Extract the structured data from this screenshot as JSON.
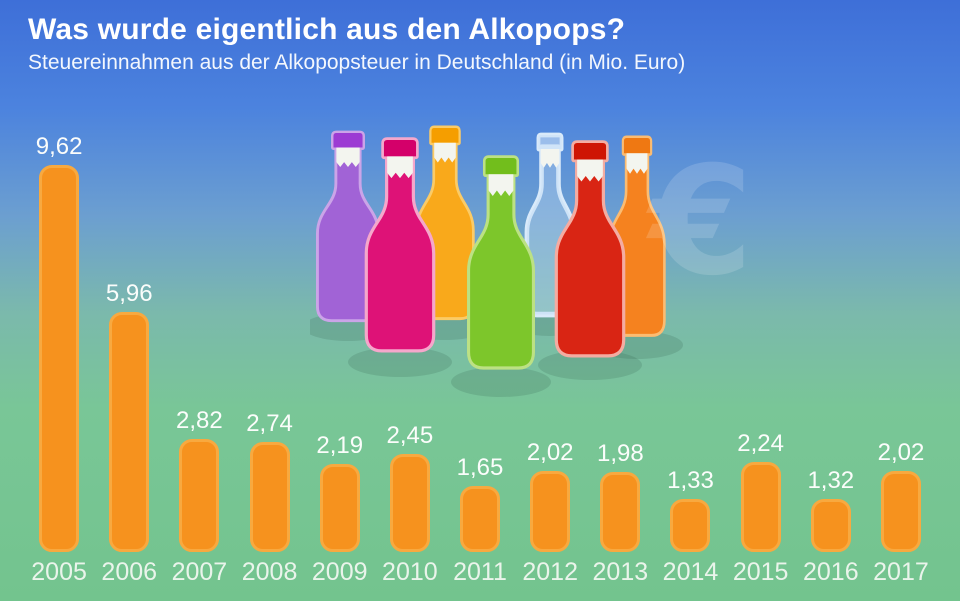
{
  "header": {
    "title": "Was wurde eigentlich aus den Alkopops?",
    "subtitle": "Steuereinnahmen aus der Alkopopsteuer in Deutschland (in Mio. Euro)"
  },
  "chart_data": {
    "type": "bar",
    "title": "Was wurde eigentlich aus den Alkopops?",
    "subtitle": "Steuereinnahmen aus der Alkopopsteuer in Deutschland (in Mio. Euro)",
    "unit": "Mio. Euro",
    "categories": [
      "2005",
      "2006",
      "2007",
      "2008",
      "2009",
      "2010",
      "2011",
      "2012",
      "2013",
      "2014",
      "2015",
      "2016",
      "2017"
    ],
    "values": [
      9.62,
      5.96,
      2.82,
      2.74,
      2.19,
      2.45,
      1.65,
      2.02,
      1.98,
      1.33,
      2.24,
      1.32,
      2.02
    ],
    "value_labels": [
      "9,62",
      "5,96",
      "2,82",
      "2,74",
      "2,19",
      "2,45",
      "1,65",
      "2,02",
      "1,98",
      "1,33",
      "2,24",
      "1,32",
      "2,02"
    ],
    "ylim": [
      0,
      10
    ],
    "grid": false,
    "legend": "none",
    "bar_color": "#F6921E",
    "bar_border_color": "#F8A93F",
    "label_color": "#FFFFFF"
  },
  "illustration": {
    "euro_symbol": "€",
    "bottles": [
      {
        "name": "purple-bottle",
        "body": "#A163D6",
        "cap": "#9C3BD3",
        "halo": "#CBA4E8"
      },
      {
        "name": "yellow-bottle",
        "body": "#F9A91B",
        "cap": "#F59E00",
        "halo": "#FBCB66"
      },
      {
        "name": "blue-bottle",
        "body": "#BDD8F2",
        "cap": "#C9DFF6",
        "halo": "#D9EAFA"
      },
      {
        "name": "orange-bottle",
        "body": "#F5821F",
        "cap": "#EF7812",
        "halo": "#FBBC72"
      },
      {
        "name": "magenta-bottle",
        "body": "#DE1277",
        "cap": "#D4006A",
        "halo": "#F5A7CB"
      },
      {
        "name": "green-bottle",
        "body": "#7DC62B",
        "cap": "#72BE1C",
        "halo": "#BCE184"
      },
      {
        "name": "red-bottle",
        "body": "#D92514",
        "cap": "#CE1504",
        "halo": "#F4ACA2"
      }
    ]
  },
  "background": {
    "top": "#3E6FD8",
    "middle": "#6C9FD0",
    "bottom": "#73C48E"
  }
}
